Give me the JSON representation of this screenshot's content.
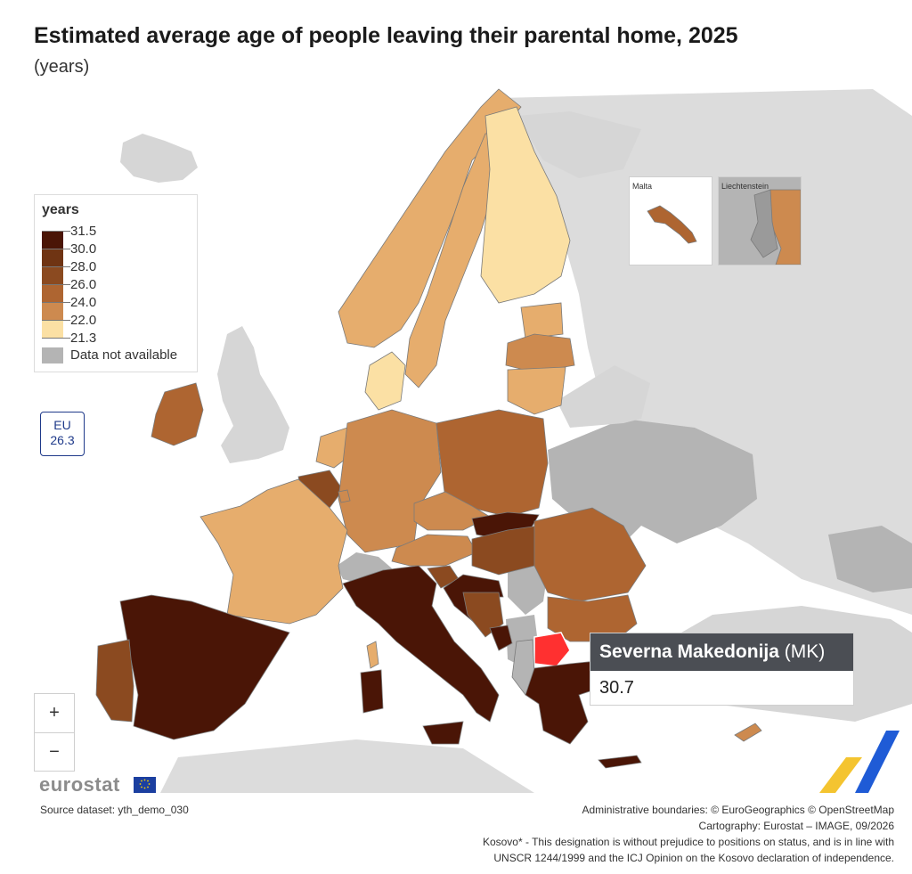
{
  "title": "Estimated average age of people leaving their parental home, 2025",
  "subtitle": "(years)",
  "legend": {
    "title": "years",
    "breaks": [
      "31.5",
      "30.0",
      "28.0",
      "26.0",
      "24.0",
      "22.0",
      "21.3"
    ],
    "colors": [
      "#4a1506",
      "#6f3413",
      "#8b4a20",
      "#ae6531",
      "#cd8a4f",
      "#e6ad6d",
      "#fbe0a4"
    ],
    "na_label": "Data not available",
    "na_color": "#b4b4b4"
  },
  "eu_badge": {
    "label": "EU",
    "value": "26.3"
  },
  "insets": [
    {
      "label": "Malta"
    },
    {
      "label": "Liechtenstein"
    }
  ],
  "tooltip": {
    "name": "Severna Makedonija",
    "code": "(MK)",
    "value": "30.7",
    "highlight_color": "#ff3030"
  },
  "zoom": {
    "plus": "+",
    "minus": "−"
  },
  "logo": {
    "text": "eurostat"
  },
  "source": "Source dataset: yth_demo_030",
  "footer": {
    "line1": "Administrative boundaries: © EuroGeographics © OpenStreetMap",
    "line2": "Cartography: Eurostat – IMAGE, 09/2026",
    "line3": "Kosovo* - This designation is without prejudice to positions on status, and is in line with",
    "line4": "UNSCR 1244/1999 and the ICJ Opinion on the Kosovo declaration of independence."
  },
  "colors": {
    "sea": "#ffffff",
    "non_eu": "#dcdcdc",
    "border": "#7a7a7a"
  }
}
